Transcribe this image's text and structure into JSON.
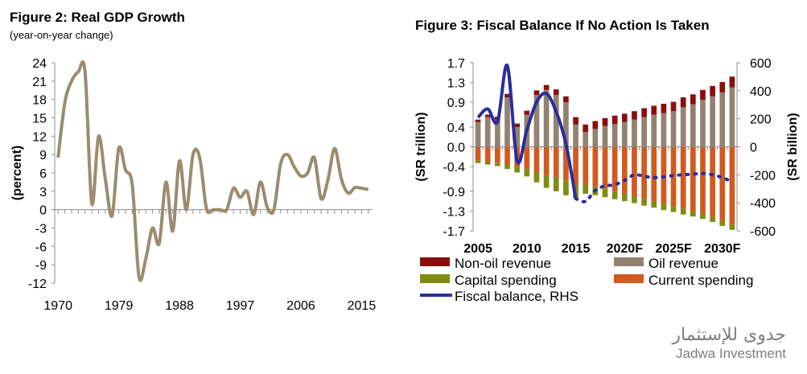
{
  "chart_data": [
    {
      "type": "line",
      "title": "Figure 2: Real GDP Growth",
      "subtitle": "(year-on-year change)",
      "ylabel": "(percent)",
      "xlabel": "",
      "ylim": [
        -12,
        24
      ],
      "yticks": [
        "24",
        "21",
        "18",
        "15",
        "12",
        "9",
        "6",
        "3",
        "0",
        "-3",
        "-6",
        "-9",
        "-12"
      ],
      "xticks": [
        "1970",
        "1979",
        "1988",
        "1997",
        "2006",
        "2015"
      ],
      "color": "#9c8b6e",
      "series": [
        {
          "x": [
            1970,
            1971,
            1972,
            1973,
            1974,
            1975,
            1976,
            1977,
            1978,
            1979,
            1980,
            1981,
            1982,
            1983,
            1984,
            1985,
            1986,
            1987,
            1988,
            1989,
            1990,
            1991,
            1992,
            1993,
            1994,
            1995,
            1996,
            1997,
            1998,
            1999,
            2000,
            2001,
            2002,
            2003,
            2004,
            2005,
            2006,
            2007,
            2008,
            2009,
            2010,
            2011,
            2012,
            2013,
            2014,
            2015,
            2016
          ],
          "values": [
            8.5,
            17.5,
            21,
            22.5,
            22.5,
            1,
            12,
            5,
            -1,
            10,
            6.5,
            4,
            -11,
            -8,
            -3,
            -5.5,
            4.5,
            -3.5,
            8,
            0,
            9,
            8.5,
            0.2,
            0,
            0,
            0,
            3.5,
            2,
            3,
            -0.8,
            4.5,
            0.4,
            0,
            7.5,
            9,
            7,
            5.5,
            6,
            8.5,
            1.8,
            4.8,
            10,
            5,
            2.7,
            3.6,
            3.5,
            3.3
          ]
        }
      ]
    },
    {
      "type": "bar",
      "title": "Figure 3: Fiscal Balance If No Action Is Taken",
      "ylabel": "(SR trillion)",
      "y2label": "(SR billion)",
      "ylim": [
        -1.7,
        1.7
      ],
      "y2lim": [
        -600,
        600
      ],
      "yticks": [
        "1.7",
        "1.3",
        "0.9",
        "0.4",
        "0.0",
        "-0.4",
        "-0.9",
        "-1.3",
        "-1.7"
      ],
      "y2ticks": [
        "600",
        "400",
        "200",
        "0",
        "-200",
        "-400",
        "-600"
      ],
      "xticks": [
        "2005",
        "2010",
        "2015",
        "2020F",
        "2025F",
        "2030F"
      ],
      "years": [
        2005,
        2006,
        2007,
        2008,
        2009,
        2010,
        2011,
        2012,
        2013,
        2014,
        2015,
        2016,
        2017,
        2018,
        2019,
        2020,
        2021,
        2022,
        2023,
        2024,
        2025,
        2026,
        2027,
        2028,
        2029,
        2030,
        2031
      ],
      "series": [
        {
          "name": "Non-oil revenue",
          "color": "#8b0e0e",
          "values": [
            0.05,
            0.05,
            0.06,
            0.07,
            0.07,
            0.08,
            0.09,
            0.1,
            0.11,
            0.12,
            0.15,
            0.15,
            0.16,
            0.16,
            0.17,
            0.17,
            0.17,
            0.18,
            0.18,
            0.19,
            0.19,
            0.2,
            0.2,
            0.2,
            0.21,
            0.21,
            0.22
          ]
        },
        {
          "name": "Oil revenue",
          "color": "#938270",
          "values": [
            0.5,
            0.6,
            0.55,
            1.0,
            0.4,
            0.65,
            1.05,
            1.15,
            1.05,
            0.9,
            0.45,
            0.3,
            0.36,
            0.42,
            0.46,
            0.5,
            0.55,
            0.6,
            0.65,
            0.68,
            0.72,
            0.8,
            0.86,
            0.95,
            1.02,
            1.1,
            1.2
          ]
        },
        {
          "name": "Capital spending",
          "color": "#7f8c13",
          "values": [
            -0.05,
            -0.06,
            -0.07,
            -0.1,
            -0.12,
            -0.15,
            -0.2,
            -0.25,
            -0.28,
            -0.3,
            -0.26,
            -0.2,
            -0.18,
            -0.17,
            -0.16,
            -0.15,
            -0.14,
            -0.14,
            -0.13,
            -0.13,
            -0.12,
            -0.12,
            -0.11,
            -0.11,
            -0.1,
            -0.1,
            -0.1
          ]
        },
        {
          "name": "Current spending",
          "color": "#d15a1f",
          "values": [
            -0.28,
            -0.3,
            -0.32,
            -0.35,
            -0.4,
            -0.45,
            -0.52,
            -0.58,
            -0.62,
            -0.68,
            -0.78,
            -0.75,
            -0.8,
            -0.85,
            -0.9,
            -0.95,
            -1.0,
            -1.05,
            -1.1,
            -1.15,
            -1.2,
            -1.25,
            -1.3,
            -1.35,
            -1.42,
            -1.5,
            -1.58
          ]
        },
        {
          "name": "Fiscal balance, RHS",
          "color": "#2a2d9a",
          "values": [
            210,
            270,
            180,
            580,
            -100,
            120,
            320,
            380,
            250,
            20,
            -370,
            -390,
            -310,
            -280,
            -270,
            -240,
            -200,
            -210,
            -220,
            -215,
            -205,
            -200,
            -195,
            -190,
            -200,
            -220,
            -250
          ]
        }
      ]
    }
  ],
  "logo": {
    "arabic": "جدوى للإستثمار",
    "english": "Jadwa Investment"
  }
}
